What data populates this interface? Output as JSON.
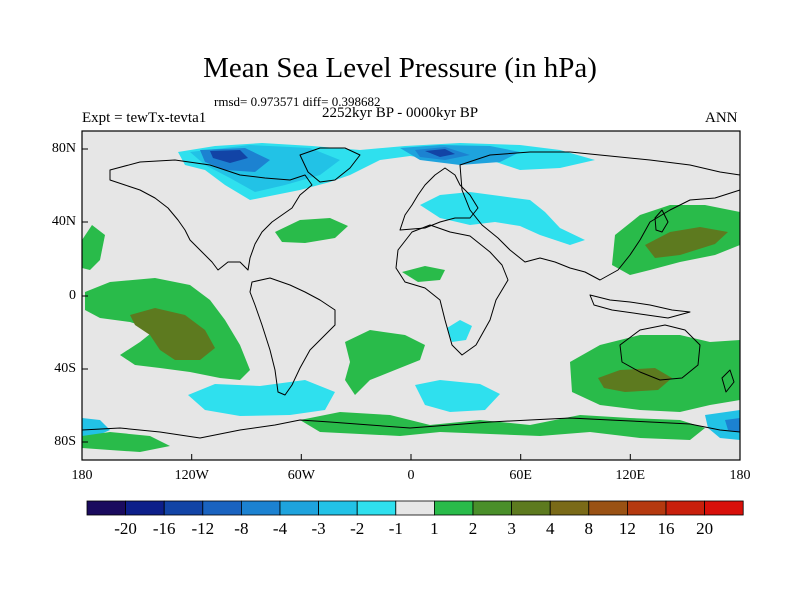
{
  "title": "Mean Sea Level Pressure (in hPa)",
  "stats": "rmsd= 0.973571 diff= 0.398682",
  "period": "2252kyr BP - 0000kyr BP",
  "experiment": "Expt = tewTx-tevta1",
  "season": "ANN",
  "y_ticks": [
    "80N",
    "40N",
    "0",
    "40S",
    "80S"
  ],
  "x_ticks": [
    "180",
    "120W",
    "60W",
    "0",
    "60E",
    "120E",
    "180"
  ],
  "colorbar": {
    "colors": [
      "#1a0a5e",
      "#0d1f8a",
      "#1244a6",
      "#1a63c0",
      "#1c82d1",
      "#1ea3dd",
      "#22c2e6",
      "#2fe0ee",
      "#e6e6e6",
      "#29bb4a",
      "#4a8f2a",
      "#5d7a1f",
      "#7a6a18",
      "#9a5214",
      "#b5390f",
      "#c9200c",
      "#d8100a"
    ],
    "labels": [
      "-20",
      "-16",
      "-12",
      "-8",
      "-4",
      "-3",
      "-2",
      "-1",
      "1",
      "2",
      "3",
      "4",
      "8",
      "12",
      "16",
      "20"
    ]
  },
  "colors": {
    "land_background": "#e6e6e6",
    "neg1": "#2fe0ee",
    "neg2": "#22c2e6",
    "neg3": "#1ea3dd",
    "neg4": "#1c82d1",
    "neg8": "#1244a6",
    "pos2": "#29bb4a",
    "pos3": "#5d7a1f"
  }
}
